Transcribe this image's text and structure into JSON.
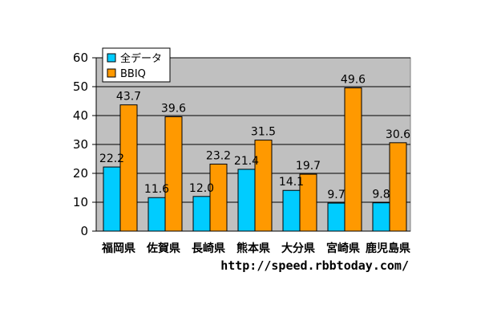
{
  "chart_data": {
    "type": "bar",
    "categories": [
      "福岡県",
      "佐賀県",
      "長崎県",
      "熊本県",
      "大分県",
      "宮崎県",
      "鹿児島県"
    ],
    "series": [
      {
        "name": "全データ",
        "values": [
          22.2,
          11.6,
          12.0,
          21.4,
          14.1,
          9.7,
          9.8
        ],
        "color": "#00ccff"
      },
      {
        "name": "BBIQ",
        "values": [
          43.7,
          39.6,
          23.2,
          31.5,
          19.7,
          49.6,
          30.6
        ],
        "color": "#ff9900"
      }
    ],
    "data_labels": [
      [
        "22.2",
        "11.6",
        "12.0",
        "21.4",
        "14.1",
        "9.7",
        "9.8"
      ],
      [
        "43.7",
        "39.6",
        "23.2",
        "31.5",
        "19.7",
        "49.6",
        "30.6"
      ]
    ],
    "ylim": [
      0,
      60
    ],
    "yticks": [
      0,
      10,
      20,
      30,
      40,
      50,
      60
    ],
    "grid": true,
    "legend": "top-left",
    "plot_background": "#c0c0c0",
    "source_text": "http://speed.rbbtoday.com/"
  }
}
